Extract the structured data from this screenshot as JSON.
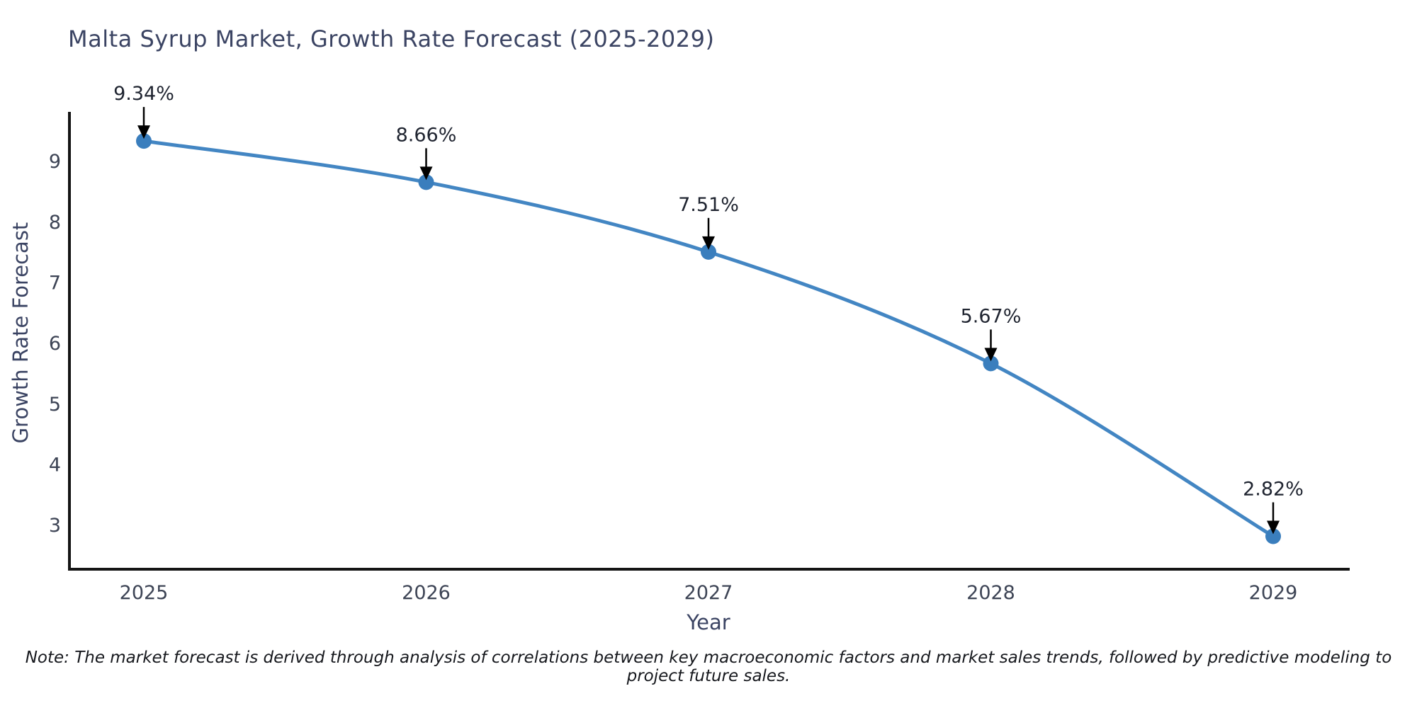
{
  "page": {
    "background_color": "#ffffff"
  },
  "chart_data": {
    "type": "line",
    "title": "Malta Syrup Market, Growth Rate Forecast (2025-2029)",
    "xlabel": "Year",
    "ylabel": "Growth Rate Forecast",
    "categories": [
      "2025",
      "2026",
      "2027",
      "2028",
      "2029"
    ],
    "series": [
      {
        "name": "Growth Rate Forecast",
        "values": [
          9.34,
          8.66,
          7.51,
          5.67,
          2.82
        ]
      }
    ],
    "point_labels": [
      "9.34%",
      "8.66%",
      "7.51%",
      "5.67%",
      "2.82%"
    ],
    "yticks": [
      3,
      4,
      5,
      6,
      7,
      8,
      9
    ],
    "ylim": [
      2.3,
      9.82
    ],
    "grid": false,
    "legend_position": "none",
    "annotation_style": "value label with down arrow to each point",
    "colors": {
      "line": "#4386c3",
      "marker": "#3a7ebd",
      "axis": "#141414",
      "title_text": "#3b4463",
      "tick_text": "#3d4455",
      "annotation_text": "#1f2430",
      "arrow": "#000000"
    }
  },
  "note": {
    "text": "Note: The market forecast is derived through analysis of correlations between key macroeconomic factors and market sales trends, followed by predictive modeling to project future sales."
  }
}
